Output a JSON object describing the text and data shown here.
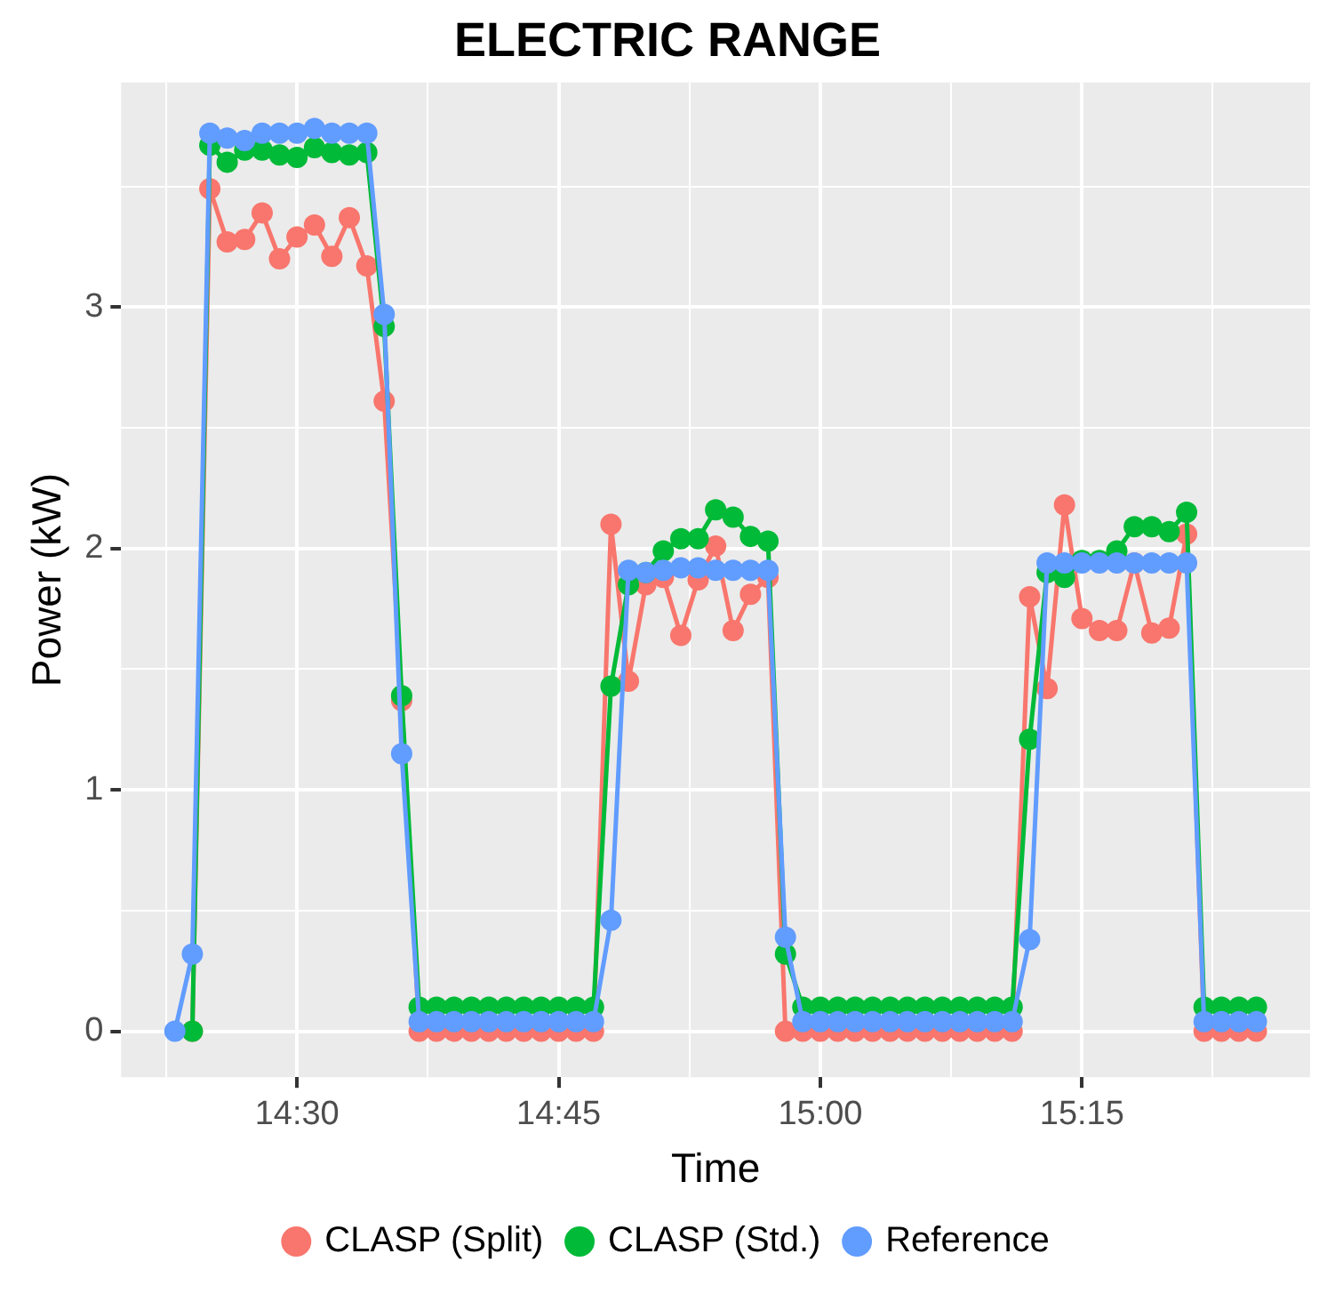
{
  "chart_data": {
    "type": "line",
    "title": "ELECTRIC RANGE",
    "xlabel": "Time",
    "ylabel": "Power (kW)",
    "x": [
      14.3833,
      14.4,
      14.4167,
      14.4333,
      14.45,
      14.4667,
      14.4833,
      14.5,
      14.5167,
      14.5333,
      14.55,
      14.5667,
      14.5833,
      14.6,
      14.6167,
      14.6333,
      14.65,
      14.6667,
      14.6833,
      14.7,
      14.7167,
      14.7333,
      14.75,
      14.7667,
      14.7833,
      14.8,
      14.8167,
      14.8333,
      14.85,
      14.8667,
      14.8833,
      14.9,
      14.9167,
      14.9333,
      14.95,
      14.9667,
      14.9833,
      15,
      15.0167,
      15.0333,
      15.05,
      15.0667,
      15.0833,
      15.1,
      15.1167,
      15.1333,
      15.15,
      15.1667,
      15.1833,
      15.2,
      15.2167,
      15.2333,
      15.25,
      15.2667,
      15.2833,
      15.3,
      15.3167,
      15.3333,
      15.35,
      15.3667,
      15.3833,
      15.4,
      15.4167
    ],
    "series": [
      {
        "name": "CLASP (Split)",
        "color": "#f8766d",
        "values": [
          null,
          0,
          3.49,
          3.27,
          3.28,
          3.39,
          3.2,
          3.29,
          3.34,
          3.21,
          3.37,
          3.17,
          2.61,
          1.37,
          0,
          0,
          0,
          0,
          0,
          0,
          0,
          0,
          0,
          0,
          0,
          2.1,
          1.45,
          1.85,
          1.88,
          1.64,
          1.87,
          2.01,
          1.66,
          1.81,
          1.88,
          0,
          0,
          0,
          0,
          0,
          0,
          0,
          0,
          0,
          0,
          0,
          0,
          0,
          0,
          1.8,
          1.42,
          2.18,
          1.71,
          1.66,
          1.66,
          1.94,
          1.65,
          1.67,
          2.06,
          0,
          0,
          0,
          0
        ]
      },
      {
        "name": "CLASP (Std.)",
        "color": "#00ba38",
        "values": [
          null,
          0,
          3.67,
          3.6,
          3.65,
          3.65,
          3.63,
          3.62,
          3.66,
          3.64,
          3.63,
          3.64,
          2.92,
          1.39,
          0.1,
          0.1,
          0.1,
          0.1,
          0.1,
          0.1,
          0.1,
          0.1,
          0.1,
          0.1,
          0.1,
          1.43,
          1.85,
          1.9,
          1.99,
          2.04,
          2.04,
          2.16,
          2.13,
          2.05,
          2.03,
          0.32,
          0.1,
          0.1,
          0.1,
          0.1,
          0.1,
          0.1,
          0.1,
          0.1,
          0.1,
          0.1,
          0.1,
          0.1,
          0.1,
          1.21,
          1.9,
          1.88,
          1.95,
          1.95,
          1.99,
          2.09,
          2.09,
          2.07,
          2.15,
          0.1,
          0.1,
          0.1,
          0.1
        ]
      },
      {
        "name": "Reference",
        "color": "#619cff",
        "values": [
          0,
          0.32,
          3.72,
          3.7,
          3.69,
          3.72,
          3.72,
          3.72,
          3.74,
          3.72,
          3.72,
          3.72,
          2.97,
          1.15,
          0.04,
          0.04,
          0.04,
          0.04,
          0.04,
          0.04,
          0.04,
          0.04,
          0.04,
          0.04,
          0.04,
          0.46,
          1.91,
          1.9,
          1.91,
          1.92,
          1.92,
          1.91,
          1.91,
          1.91,
          1.91,
          0.39,
          0.04,
          0.04,
          0.04,
          0.04,
          0.04,
          0.04,
          0.04,
          0.04,
          0.04,
          0.04,
          0.04,
          0.04,
          0.04,
          0.38,
          1.94,
          1.94,
          1.94,
          1.94,
          1.94,
          1.94,
          1.94,
          1.94,
          1.94,
          0.04,
          0.04,
          0.04,
          0.04
        ]
      }
    ],
    "xlim": [
      14.332,
      15.468
    ],
    "xticks": [
      {
        "value": 14.375,
        "label": null
      },
      {
        "value": 14.5,
        "label": "14:30"
      },
      {
        "value": 14.625,
        "label": null
      },
      {
        "value": 14.75,
        "label": "14:45"
      },
      {
        "value": 14.875,
        "label": null
      },
      {
        "value": 15,
        "label": "15:00"
      },
      {
        "value": 15.125,
        "label": null
      },
      {
        "value": 15.25,
        "label": "15:15"
      },
      {
        "value": 15.375,
        "label": null
      }
    ],
    "ylim": [
      -0.19,
      3.93
    ],
    "yticks": [
      0,
      {
        "value": 0.5,
        "label": null
      },
      1,
      {
        "value": 1.5,
        "label": null
      },
      2,
      {
        "value": 2.5,
        "label": null
      },
      3,
      {
        "value": 3.5,
        "label": null
      }
    ],
    "grid": true,
    "legend": "bottom",
    "marker": "circle",
    "line_style": "solid"
  }
}
